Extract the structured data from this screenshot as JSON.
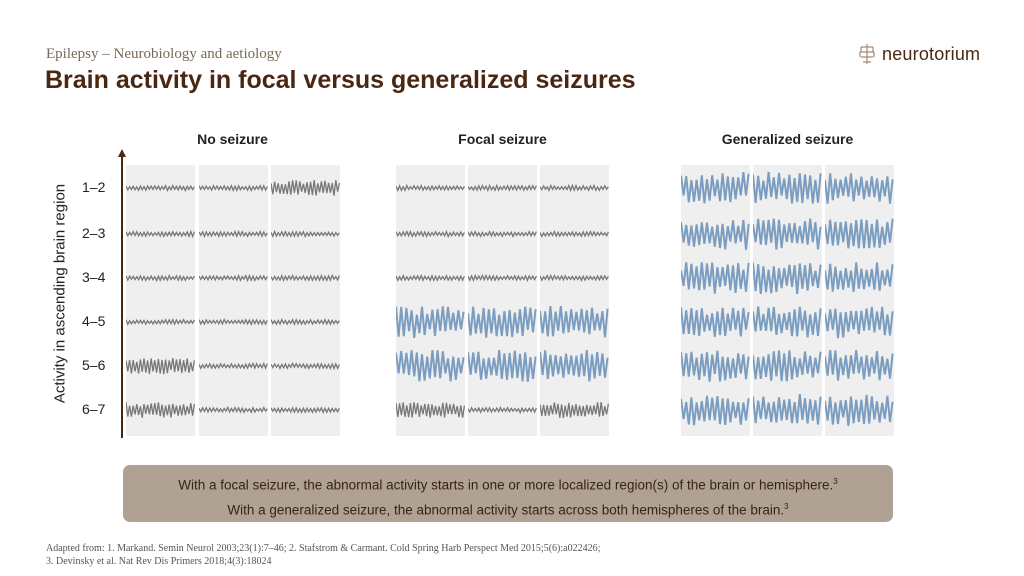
{
  "header": {
    "subtitle": "Epilepsy – Neurobiology and aetiology",
    "title": "Brain activity in focal versus generalized seizures",
    "logo_text": "neurotorium"
  },
  "figure": {
    "y_axis_label": "Activity in ascending brain region",
    "row_labels": [
      "1–2",
      "2–3",
      "3–4",
      "4–5",
      "5–6",
      "6–7"
    ],
    "colors": {
      "normal": "#777777",
      "seizure": "#7b9dc0",
      "panel_bg": "#efefef",
      "axis": "#4a2712"
    },
    "panels": [
      {
        "title": "No seizure",
        "rows": [
          [
            "low",
            "low",
            "high"
          ],
          [
            "low",
            "low",
            "low"
          ],
          [
            "low",
            "low",
            "low"
          ],
          [
            "low",
            "low",
            "low"
          ],
          [
            "high",
            "low",
            "low"
          ],
          [
            "high",
            "low",
            "low"
          ]
        ]
      },
      {
        "title": "Focal seizure",
        "rows": [
          [
            "low",
            "low",
            "low"
          ],
          [
            "low",
            "low",
            "low"
          ],
          [
            "low",
            "low",
            "low"
          ],
          [
            "seizure",
            "seizure",
            "seizure"
          ],
          [
            "seizure",
            "seizure",
            "seizure"
          ],
          [
            "high",
            "low",
            "high"
          ]
        ]
      },
      {
        "title": "Generalized seizure",
        "rows": [
          [
            "seizure",
            "seizure",
            "seizure"
          ],
          [
            "seizure",
            "seizure",
            "seizure"
          ],
          [
            "seizure",
            "seizure",
            "seizure"
          ],
          [
            "seizure",
            "seizure",
            "seizure"
          ],
          [
            "seizure",
            "seizure",
            "seizure"
          ],
          [
            "seizure",
            "seizure",
            "seizure"
          ]
        ]
      }
    ]
  },
  "note": {
    "line1": "With a focal seizure, the abnormal activity starts in one or more localized region(s) of the brain or hemisphere.",
    "line1_ref": "3",
    "line2": "With a generalized seizure, the abnormal activity starts across both hemispheres of the brain.",
    "line2_ref": "3"
  },
  "references": {
    "line1": "Adapted from: 1. Markand. Semin Neurol 2003;23(1):7–46; 2. Stafstrom & Carmant. Cold Spring Harb Perspect Med 2015;5(6):a022426;",
    "line2": "3. Devinsky et al. Nat Rev Dis Primers 2018;4(3):18024"
  }
}
